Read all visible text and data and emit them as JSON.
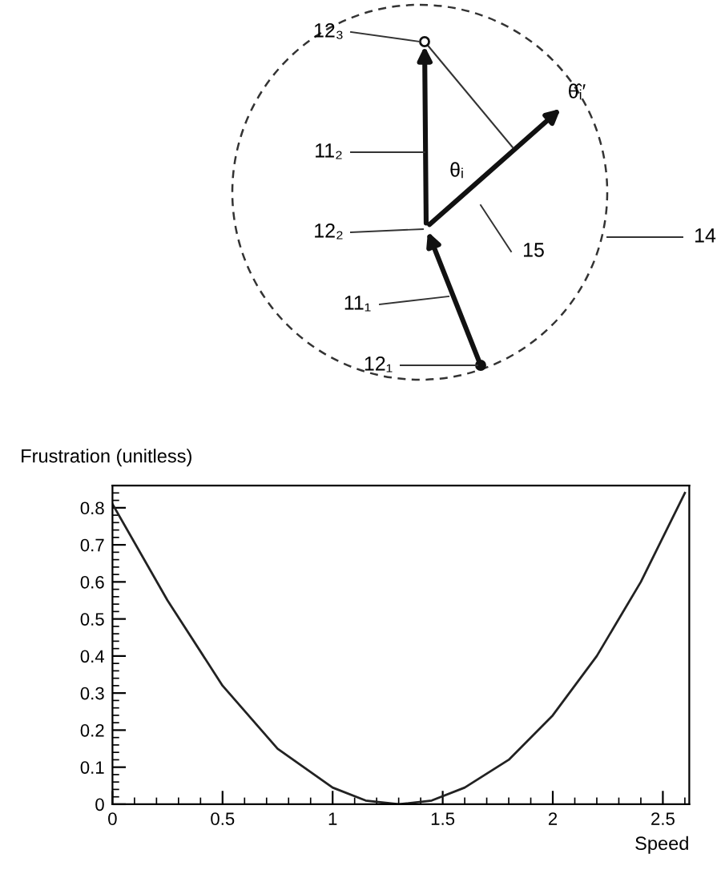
{
  "chart_data": [
    {
      "type": "other",
      "annotations": [
        "12₃",
        "11₂",
        "θᵢ",
        "12₂",
        "15",
        "14",
        "11₁",
        "12₁",
        "θ̂ᵢ′"
      ]
    },
    {
      "type": "line",
      "ylabel": "Frustration (unitless)",
      "xlabel": "Speed",
      "x": [
        0,
        0.25,
        0.5,
        0.75,
        1,
        1.15,
        1.3,
        1.45,
        1.6,
        1.8,
        2,
        2.2,
        2.4,
        2.6
      ],
      "series": [
        {
          "color": "#222222",
          "values": [
            0.81,
            0.55,
            0.32,
            0.15,
            0.045,
            0.01,
            0,
            0.01,
            0.045,
            0.12,
            0.24,
            0.4,
            0.6,
            0.84
          ]
        }
      ],
      "xlim": [
        0,
        2.62
      ],
      "ylim": [
        0,
        0.86
      ],
      "xticks": [
        0,
        0.5,
        1,
        1.5,
        2,
        2.5
      ],
      "yticks": [
        0,
        0.1,
        0.2,
        0.3,
        0.4,
        0.5,
        0.6,
        0.7,
        0.8
      ],
      "grid": false,
      "marker": "none",
      "line_style": "solid"
    }
  ]
}
